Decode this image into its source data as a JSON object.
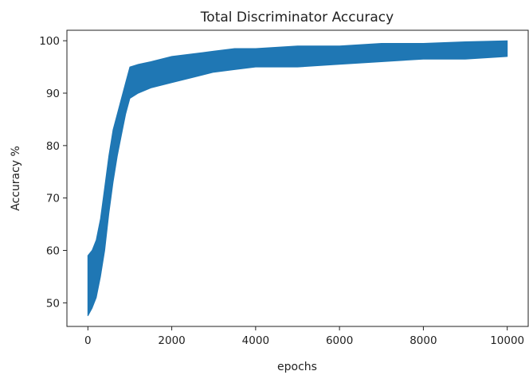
{
  "chart_data": {
    "type": "line",
    "title": "Total Discriminator Accuracy",
    "xlabel": "epochs",
    "ylabel": "Accuracy %",
    "xlim": [
      -500,
      10500
    ],
    "ylim": [
      45.5,
      102
    ],
    "x_ticks": [
      0,
      2000,
      4000,
      6000,
      8000,
      10000
    ],
    "y_ticks": [
      50,
      60,
      70,
      80,
      90,
      100
    ],
    "grid": false,
    "series": [
      {
        "color": "#1f77b4",
        "band": true,
        "x": [
          0,
          100,
          200,
          300,
          400,
          500,
          600,
          700,
          800,
          900,
          1000,
          1200,
          1500,
          2000,
          2500,
          3000,
          3500,
          4000,
          5000,
          6000,
          7000,
          8000,
          9000,
          10000
        ],
        "upper": [
          59,
          60,
          62,
          66,
          72,
          78,
          83,
          86,
          89,
          92,
          95,
          95.5,
          96,
          97,
          97.5,
          98,
          98.5,
          98.5,
          99,
          99,
          99.5,
          99.5,
          99.8,
          100
        ],
        "lower": [
          47.5,
          49,
          51,
          55,
          60,
          67,
          73,
          78,
          82,
          86,
          89,
          90,
          91,
          92,
          93,
          94,
          94.5,
          95,
          95,
          95.5,
          96,
          96.5,
          96.5,
          97
        ]
      }
    ]
  }
}
